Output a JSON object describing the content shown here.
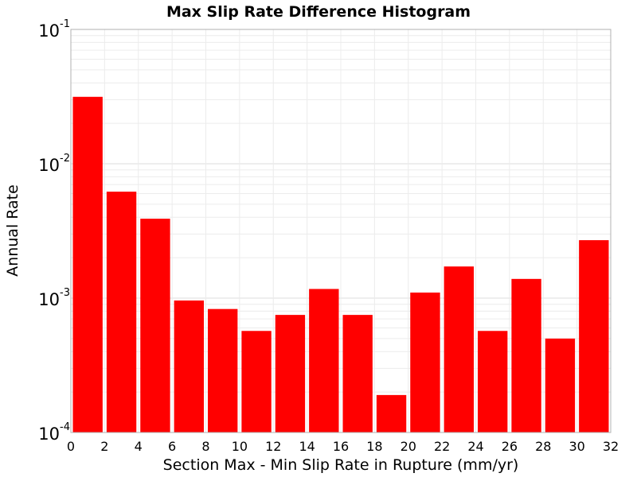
{
  "chart_data": {
    "type": "bar",
    "title": "Max Slip Rate Difference Histogram",
    "xlabel": "Section Max - Min Slip Rate in Rupture (mm/yr)",
    "ylabel": "Annual Rate",
    "xlim": [
      0,
      32
    ],
    "ylim": [
      0.0001,
      0.1
    ],
    "yscale": "log",
    "grid": true,
    "bar_color": "#ff0000",
    "bin_width": 2,
    "x": [
      1,
      3,
      5,
      7,
      9,
      11,
      13,
      15,
      17,
      19,
      21,
      23,
      25,
      27,
      29,
      31
    ],
    "values": [
      0.0315,
      0.0062,
      0.0039,
      0.00096,
      0.00083,
      0.00057,
      0.00075,
      0.00117,
      0.00075,
      0.00019,
      0.0011,
      0.00172,
      0.00057,
      0.00139,
      0.0005,
      0.0027
    ],
    "x_ticks": [
      "0",
      "2",
      "4",
      "6",
      "8",
      "10",
      "12",
      "14",
      "16",
      "18",
      "20",
      "22",
      "24",
      "26",
      "28",
      "30",
      "32"
    ],
    "y_ticks": [
      {
        "base": "10",
        "exp": "-1",
        "value": 0.1
      },
      {
        "base": "10",
        "exp": "-2",
        "value": 0.01
      },
      {
        "base": "10",
        "exp": "-3",
        "value": 0.001
      },
      {
        "base": "10",
        "exp": "-4",
        "value": 0.0001
      }
    ]
  }
}
